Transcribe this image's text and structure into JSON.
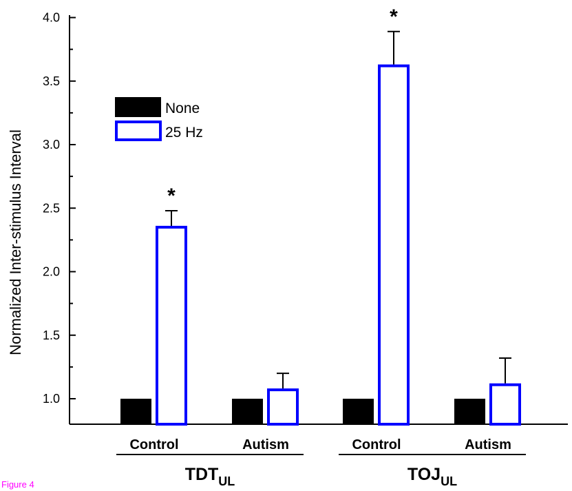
{
  "chart_data": {
    "type": "bar",
    "title": "",
    "ylabel": "Normalized Inter-stimulus Interval",
    "xlabel": "",
    "ylim": [
      0.8,
      4.0
    ],
    "yticks": [
      "1.0",
      "1.5",
      "2.0",
      "2.5",
      "3.0",
      "3.5",
      "4.0"
    ],
    "groups": [
      {
        "name": "TDT",
        "subscript": "UL",
        "categories": [
          "Control",
          "Autism"
        ]
      },
      {
        "name": "TOJ",
        "subscript": "UL",
        "categories": [
          "Control",
          "Autism"
        ]
      }
    ],
    "categories": [
      "Control",
      "Autism",
      "Control",
      "Autism"
    ],
    "series": [
      {
        "name": "None",
        "values": [
          1.0,
          1.0,
          1.0,
          1.0
        ],
        "error": [
          0,
          0,
          0,
          0
        ],
        "color": "#000000",
        "fill": "solid"
      },
      {
        "name": "25 Hz",
        "values": [
          2.35,
          1.07,
          3.62,
          1.11
        ],
        "error": [
          0.13,
          0.13,
          0.27,
          0.21
        ],
        "color": "#0000ff",
        "fill": "hollow"
      }
    ],
    "annotations": [
      "*",
      "*"
    ],
    "significant": [
      true,
      false,
      true,
      false
    ],
    "legend_position": "top-left",
    "grid": false
  },
  "caption": "Figure 4"
}
